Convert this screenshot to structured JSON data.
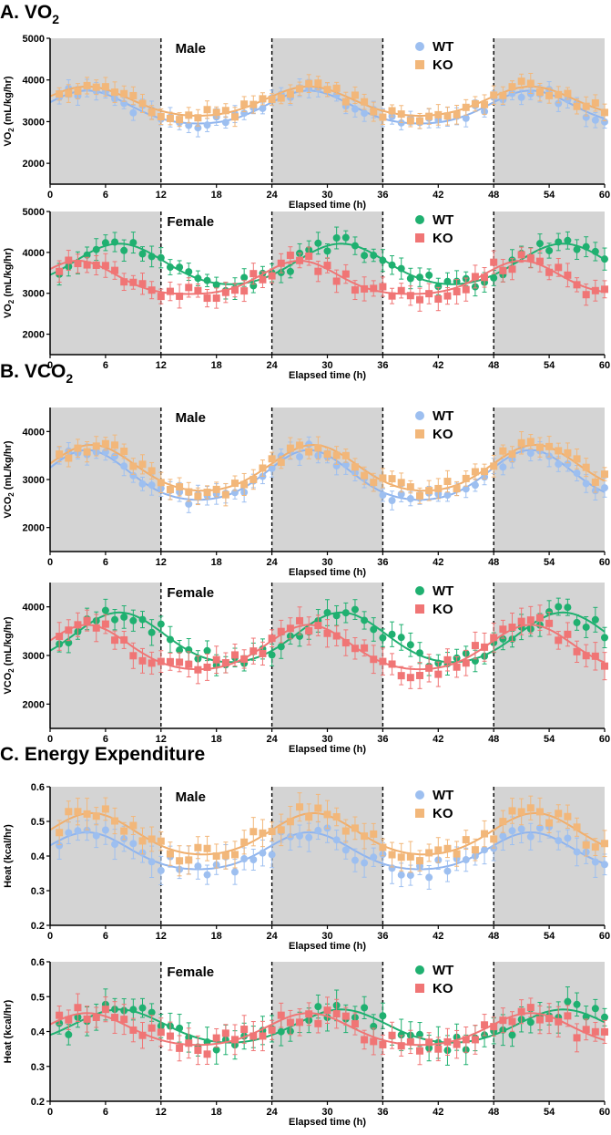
{
  "sections": [
    {
      "letter": "A.",
      "name": "VO",
      "sub": "2"
    },
    {
      "letter": "B.",
      "name": "VCO",
      "sub": "2"
    },
    {
      "letter": "C.",
      "name": "Energy Expenditure",
      "sub": ""
    }
  ],
  "colors": {
    "male_wt": "#9dbff0",
    "male_ko": "#f2b77a",
    "male_wt_line": "#8fb4ee",
    "male_ko_line": "#f0ae6c",
    "female_wt": "#1fb070",
    "female_ko": "#f07575",
    "dark_band": "#d4d4d4"
  },
  "chart_data": [
    {
      "id": "vo2-male",
      "section": 0,
      "type": "scatter",
      "panel_label": "Male",
      "legend": [
        "WT",
        "KO"
      ],
      "group": "male",
      "ylabel_text": "VO",
      "ylabel_sub": "2",
      "ylabel_unit": " (mL/kg/hr)",
      "xlabel": "Elapsed time  (h)",
      "xlim": [
        0,
        60
      ],
      "ylim": [
        1500,
        5000
      ],
      "xticks": [
        0,
        6,
        12,
        18,
        24,
        30,
        36,
        42,
        48,
        54,
        60
      ],
      "yticks": [
        2000,
        3000,
        4000,
        5000
      ],
      "dark_periods": [
        [
          0,
          12
        ],
        [
          24,
          36
        ],
        [
          48,
          60
        ]
      ],
      "dashed_lines": [
        12,
        24,
        36,
        48
      ],
      "series": [
        {
          "name": "WT",
          "amp": 520,
          "base": 3200,
          "peak": 4,
          "width": 2.2,
          "seed": 1,
          "err": 180
        },
        {
          "name": "KO",
          "amp": 470,
          "base": 3350,
          "peak": 4,
          "width": 2.3,
          "seed": 2,
          "err": 190
        }
      ]
    },
    {
      "id": "vo2-female",
      "section": 0,
      "type": "scatter",
      "panel_label": "Female",
      "legend": [
        "WT",
        "KO"
      ],
      "group": "female",
      "ylabel_text": "VO",
      "ylabel_sub": "2",
      "ylabel_unit": " (mL/kg/hr)",
      "xlabel": "Elapsed time  (h)",
      "xlim": [
        0,
        60
      ],
      "ylim": [
        1500,
        5000
      ],
      "xticks": [
        0,
        6,
        12,
        18,
        24,
        30,
        36,
        42,
        48,
        54,
        60
      ],
      "yticks": [
        2000,
        3000,
        4000,
        5000
      ],
      "dark_periods": [
        [
          0,
          12
        ],
        [
          24,
          36
        ],
        [
          48,
          60
        ]
      ],
      "dashed_lines": [
        12,
        24,
        36,
        48
      ],
      "series": [
        {
          "name": "WT",
          "amp": 680,
          "base": 3500,
          "peak": 7.5,
          "width": 2.4,
          "seed": 3,
          "err": 210
        },
        {
          "name": "KO",
          "amp": 520,
          "base": 3250,
          "peak": 3,
          "width": 2.0,
          "seed": 4,
          "err": 230
        }
      ]
    },
    {
      "id": "vco2-male",
      "section": 1,
      "type": "scatter",
      "panel_label": "Male",
      "legend": [
        "WT",
        "KO"
      ],
      "group": "male",
      "ylabel_text": "VCO",
      "ylabel_sub": "2",
      "ylabel_unit": " (mL/kg/hr)",
      "xlabel": "Elapsed time  (h)",
      "xlim": [
        0,
        60
      ],
      "ylim": [
        1500,
        4500
      ],
      "xticks": [
        0,
        6,
        12,
        18,
        24,
        30,
        36,
        42,
        48,
        54,
        60
      ],
      "yticks": [
        2000,
        3000,
        4000
      ],
      "dark_periods": [
        [
          0,
          12
        ],
        [
          24,
          36
        ],
        [
          48,
          60
        ]
      ],
      "dashed_lines": [
        12,
        24,
        36,
        48
      ],
      "series": [
        {
          "name": "WT",
          "amp": 680,
          "base": 2900,
          "peak": 4,
          "width": 2.2,
          "seed": 5,
          "err": 170
        },
        {
          "name": "KO",
          "amp": 640,
          "base": 3050,
          "peak": 4.5,
          "width": 2.3,
          "seed": 6,
          "err": 180
        }
      ]
    },
    {
      "id": "vco2-female",
      "section": 1,
      "type": "scatter",
      "panel_label": "Female",
      "legend": [
        "WT",
        "KO"
      ],
      "group": "female",
      "ylabel_text": "VCO",
      "ylabel_sub": "2",
      "ylabel_unit": " (mL/kg/hr)",
      "xlabel": "Elapsed time  (h)",
      "xlim": [
        0,
        60
      ],
      "ylim": [
        1500,
        4500
      ],
      "xticks": [
        0,
        6,
        12,
        18,
        24,
        30,
        36,
        42,
        48,
        54,
        60
      ],
      "yticks": [
        2000,
        3000,
        4000
      ],
      "dark_periods": [
        [
          0,
          12
        ],
        [
          24,
          36
        ],
        [
          48,
          60
        ]
      ],
      "dashed_lines": [
        12,
        24,
        36,
        48
      ],
      "series": [
        {
          "name": "WT",
          "amp": 700,
          "base": 3150,
          "peak": 7.5,
          "width": 2.4,
          "seed": 7,
          "err": 210
        },
        {
          "name": "KO",
          "amp": 600,
          "base": 3000,
          "peak": 4,
          "width": 2.2,
          "seed": 8,
          "err": 230
        }
      ]
    },
    {
      "id": "heat-male",
      "section": 2,
      "type": "scatter",
      "panel_label": "Male",
      "legend": [
        "WT",
        "KO"
      ],
      "group": "male",
      "ylabel_text": "Heat",
      "ylabel_sub": "",
      "ylabel_unit": "  (kcal/hr)",
      "xlabel": "Elapsed time  (h)",
      "xlim": [
        0,
        60
      ],
      "ylim": [
        0.2,
        0.6
      ],
      "xticks": [
        0,
        6,
        12,
        18,
        24,
        30,
        36,
        42,
        48,
        54,
        60
      ],
      "yticks": [
        0.2,
        0.3,
        0.4,
        0.5,
        0.6
      ],
      "dark_periods": [
        [
          0,
          12
        ],
        [
          24,
          36
        ],
        [
          48,
          60
        ]
      ],
      "dashed_lines": [
        12,
        24,
        36,
        48
      ],
      "series": [
        {
          "name": "WT",
          "amp": 0.07,
          "base": 0.395,
          "peak": 4,
          "width": 2.2,
          "seed": 9,
          "err": 0.035
        },
        {
          "name": "KO",
          "amp": 0.08,
          "base": 0.44,
          "peak": 4.5,
          "width": 2.3,
          "seed": 10,
          "err": 0.035
        }
      ]
    },
    {
      "id": "heat-female",
      "section": 2,
      "type": "scatter",
      "panel_label": "Female",
      "legend": [
        "WT",
        "KO"
      ],
      "group": "female",
      "ylabel_text": "Heat",
      "ylabel_sub": "",
      "ylabel_unit": "  (kcal/hr)",
      "xlabel": "Elapsed time  (h)",
      "xlim": [
        0,
        60
      ],
      "ylim": [
        0.2,
        0.6
      ],
      "xticks": [
        0,
        6,
        12,
        18,
        24,
        30,
        36,
        42,
        48,
        54,
        60
      ],
      "yticks": [
        0.2,
        0.3,
        0.4,
        0.5,
        0.6
      ],
      "dark_periods": [
        [
          0,
          12
        ],
        [
          24,
          36
        ],
        [
          48,
          60
        ]
      ],
      "dashed_lines": [
        12,
        24,
        36,
        48
      ],
      "series": [
        {
          "name": "WT",
          "amp": 0.065,
          "base": 0.395,
          "peak": 7.5,
          "width": 2.4,
          "seed": 11,
          "err": 0.035
        },
        {
          "name": "KO",
          "amp": 0.06,
          "base": 0.39,
          "peak": 4,
          "width": 2.2,
          "seed": 12,
          "err": 0.035
        }
      ]
    }
  ]
}
